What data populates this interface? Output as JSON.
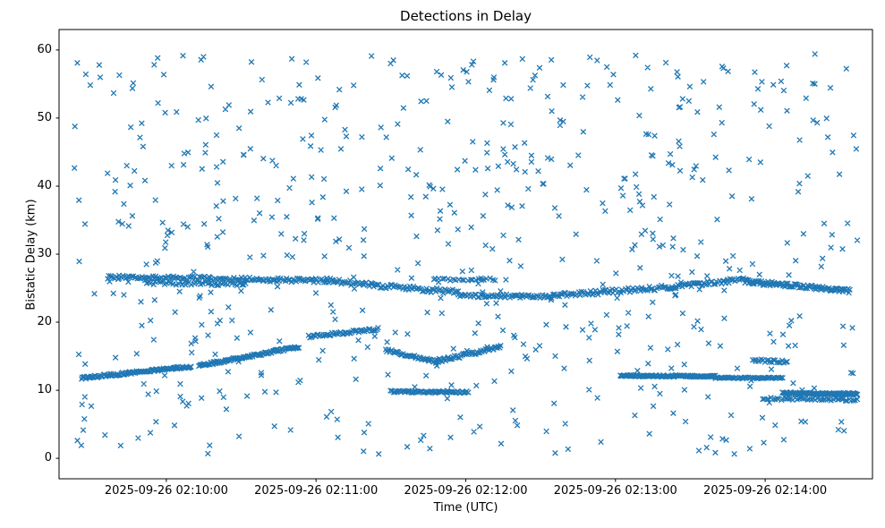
{
  "title": "Detections in Delay",
  "chart_data": {
    "type": "scatter",
    "marker": "x",
    "marker_color": "#1f77b4",
    "title": "Detections in Delay",
    "xlabel": "Time (UTC)",
    "ylabel": "Bistatic Delay (km)",
    "grid": false,
    "legend": null,
    "ylim": [
      -3,
      63
    ],
    "yticks": [
      0,
      10,
      20,
      30,
      40,
      50,
      60
    ],
    "x_axis": {
      "range_s": 326,
      "ticks": [
        {
          "t": 43,
          "label": "2025-09-26 02:10:00"
        },
        {
          "t": 103,
          "label": "2025-09-26 02:11:00"
        },
        {
          "t": 163,
          "label": "2025-09-26 02:12:00"
        },
        {
          "t": 223,
          "label": "2025-09-26 02:13:00"
        },
        {
          "t": 283,
          "label": "2025-09-26 02:14:00"
        }
      ]
    },
    "seed": 7,
    "background_scatter": {
      "count": 650,
      "t_range": [
        6,
        320
      ],
      "y_range": [
        0.5,
        59.5
      ]
    },
    "tracks": [
      {
        "t0": 9,
        "t1": 53,
        "y0": 11.8,
        "y1": 13.5,
        "step": 0.4,
        "jitter": 0.18
      },
      {
        "t0": 56,
        "t1": 96,
        "y0": 13.6,
        "y1": 16.4,
        "step": 0.4,
        "jitter": 0.18
      },
      {
        "t0": 100,
        "t1": 128,
        "y0": 17.9,
        "y1": 19.0,
        "step": 0.55,
        "jitter": 0.2
      },
      {
        "t0": 131,
        "t1": 151,
        "y0": 15.9,
        "y1": 14.2,
        "step": 0.5,
        "jitter": 0.2
      },
      {
        "t0": 151,
        "t1": 177,
        "y0": 14.2,
        "y1": 16.4,
        "step": 0.5,
        "jitter": 0.25
      },
      {
        "t0": 20,
        "t1": 60,
        "y0": 26.6,
        "y1": 26.4,
        "step": 0.6,
        "jitter": 0.3
      },
      {
        "t0": 35,
        "t1": 75,
        "y0": 25.8,
        "y1": 25.6,
        "step": 0.9,
        "jitter": 0.25
      },
      {
        "t0": 60,
        "t1": 110,
        "y0": 26.4,
        "y1": 26.1,
        "step": 0.6,
        "jitter": 0.3
      },
      {
        "t0": 110,
        "t1": 160,
        "y0": 26.0,
        "y1": 24.4,
        "step": 0.6,
        "jitter": 0.35
      },
      {
        "t0": 150,
        "t1": 175,
        "y0": 26.3,
        "y1": 26.3,
        "step": 1.1,
        "jitter": 0.2
      },
      {
        "t0": 160,
        "t1": 195,
        "y0": 23.9,
        "y1": 23.8,
        "step": 0.6,
        "jitter": 0.25
      },
      {
        "t0": 195,
        "t1": 245,
        "y0": 23.8,
        "y1": 25.2,
        "step": 0.6,
        "jitter": 0.35
      },
      {
        "t0": 245,
        "t1": 275,
        "y0": 25.2,
        "y1": 26.3,
        "step": 0.6,
        "jitter": 0.3
      },
      {
        "t0": 275,
        "t1": 317,
        "y0": 26.0,
        "y1": 24.6,
        "step": 0.4,
        "jitter": 0.3
      },
      {
        "t0": 225,
        "t1": 263,
        "y0": 12.15,
        "y1": 12.05,
        "step": 0.35,
        "jitter": 0.12
      },
      {
        "t0": 263,
        "t1": 290,
        "y0": 11.85,
        "y1": 11.8,
        "step": 0.55,
        "jitter": 0.12
      },
      {
        "t0": 133,
        "t1": 164,
        "y0": 9.85,
        "y1": 9.7,
        "step": 0.5,
        "jitter": 0.15
      },
      {
        "t0": 290,
        "t1": 320,
        "y0": 9.6,
        "y1": 9.45,
        "step": 0.35,
        "jitter": 0.15
      },
      {
        "t0": 282,
        "t1": 320,
        "y0": 8.8,
        "y1": 8.6,
        "step": 0.8,
        "jitter": 0.2
      },
      {
        "t0": 278,
        "t1": 292,
        "y0": 14.4,
        "y1": 14.2,
        "step": 0.7,
        "jitter": 0.2
      }
    ]
  }
}
